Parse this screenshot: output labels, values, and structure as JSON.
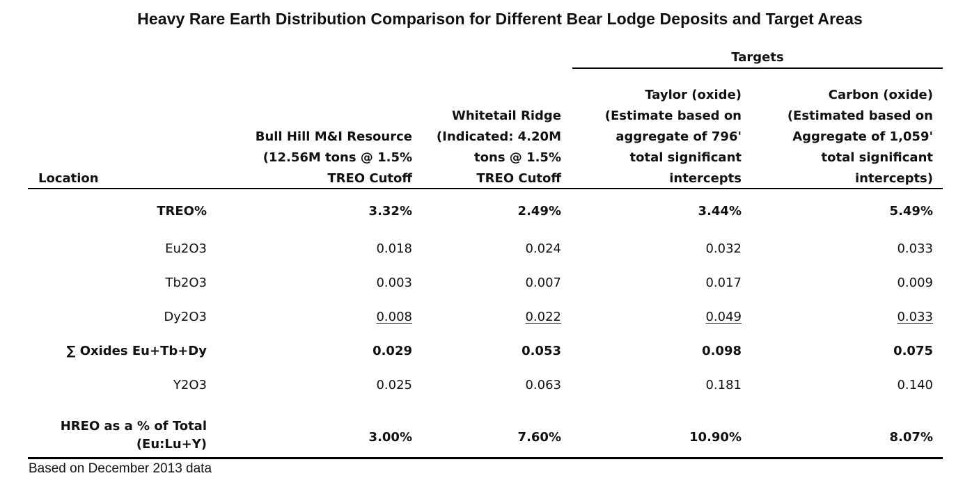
{
  "title": "Heavy Rare Earth Distribution Comparison for Different Bear Lodge Deposits and Target Areas",
  "targets_label": "Targets",
  "headers": {
    "location": "Location",
    "bull_hill": [
      "Bull Hill M&I Resource",
      "(12.56M tons @ 1.5%",
      "TREO Cutoff"
    ],
    "whitetail": [
      "Whitetail Ridge",
      "(Indicated: 4.20M",
      "tons @ 1.5%",
      "TREO Cutoff"
    ],
    "taylor": [
      "Taylor (oxide)",
      "(Estimate based on",
      "aggregate of 796'",
      "total significant",
      "intercepts"
    ],
    "carbon": [
      "Carbon (oxide)",
      "(Estimated based on",
      "Aggregate of 1,059'",
      "total significant",
      "intercepts)"
    ]
  },
  "rows": [
    {
      "label": "TREO%",
      "values": [
        "3.32%",
        "2.49%",
        "3.44%",
        "5.49%"
      ],
      "bold": true,
      "underline": false
    },
    {
      "label": "Eu2O3",
      "values": [
        "0.018",
        "0.024",
        "0.032",
        "0.033"
      ],
      "bold": false,
      "underline": false
    },
    {
      "label": "Tb2O3",
      "values": [
        "0.003",
        "0.007",
        "0.017",
        "0.009"
      ],
      "bold": false,
      "underline": false
    },
    {
      "label": "Dy2O3",
      "values": [
        "0.008",
        "0.022",
        "0.049",
        "0.033"
      ],
      "bold": false,
      "underline": true
    },
    {
      "label": "∑ Oxides Eu+Tb+Dy",
      "values": [
        "0.029",
        "0.053",
        "0.098",
        "0.075"
      ],
      "bold": true,
      "underline": false
    },
    {
      "label": "Y2O3",
      "values": [
        "0.025",
        "0.063",
        "0.181",
        "0.140"
      ],
      "bold": false,
      "underline": false
    }
  ],
  "hreo_row": {
    "label_lines": [
      "HREO as a % of Total",
      "(Eu:Lu+Y)"
    ],
    "values": [
      "3.00%",
      "7.60%",
      "10.90%",
      "8.07%"
    ]
  },
  "footnote": "Based on December 2013 data"
}
